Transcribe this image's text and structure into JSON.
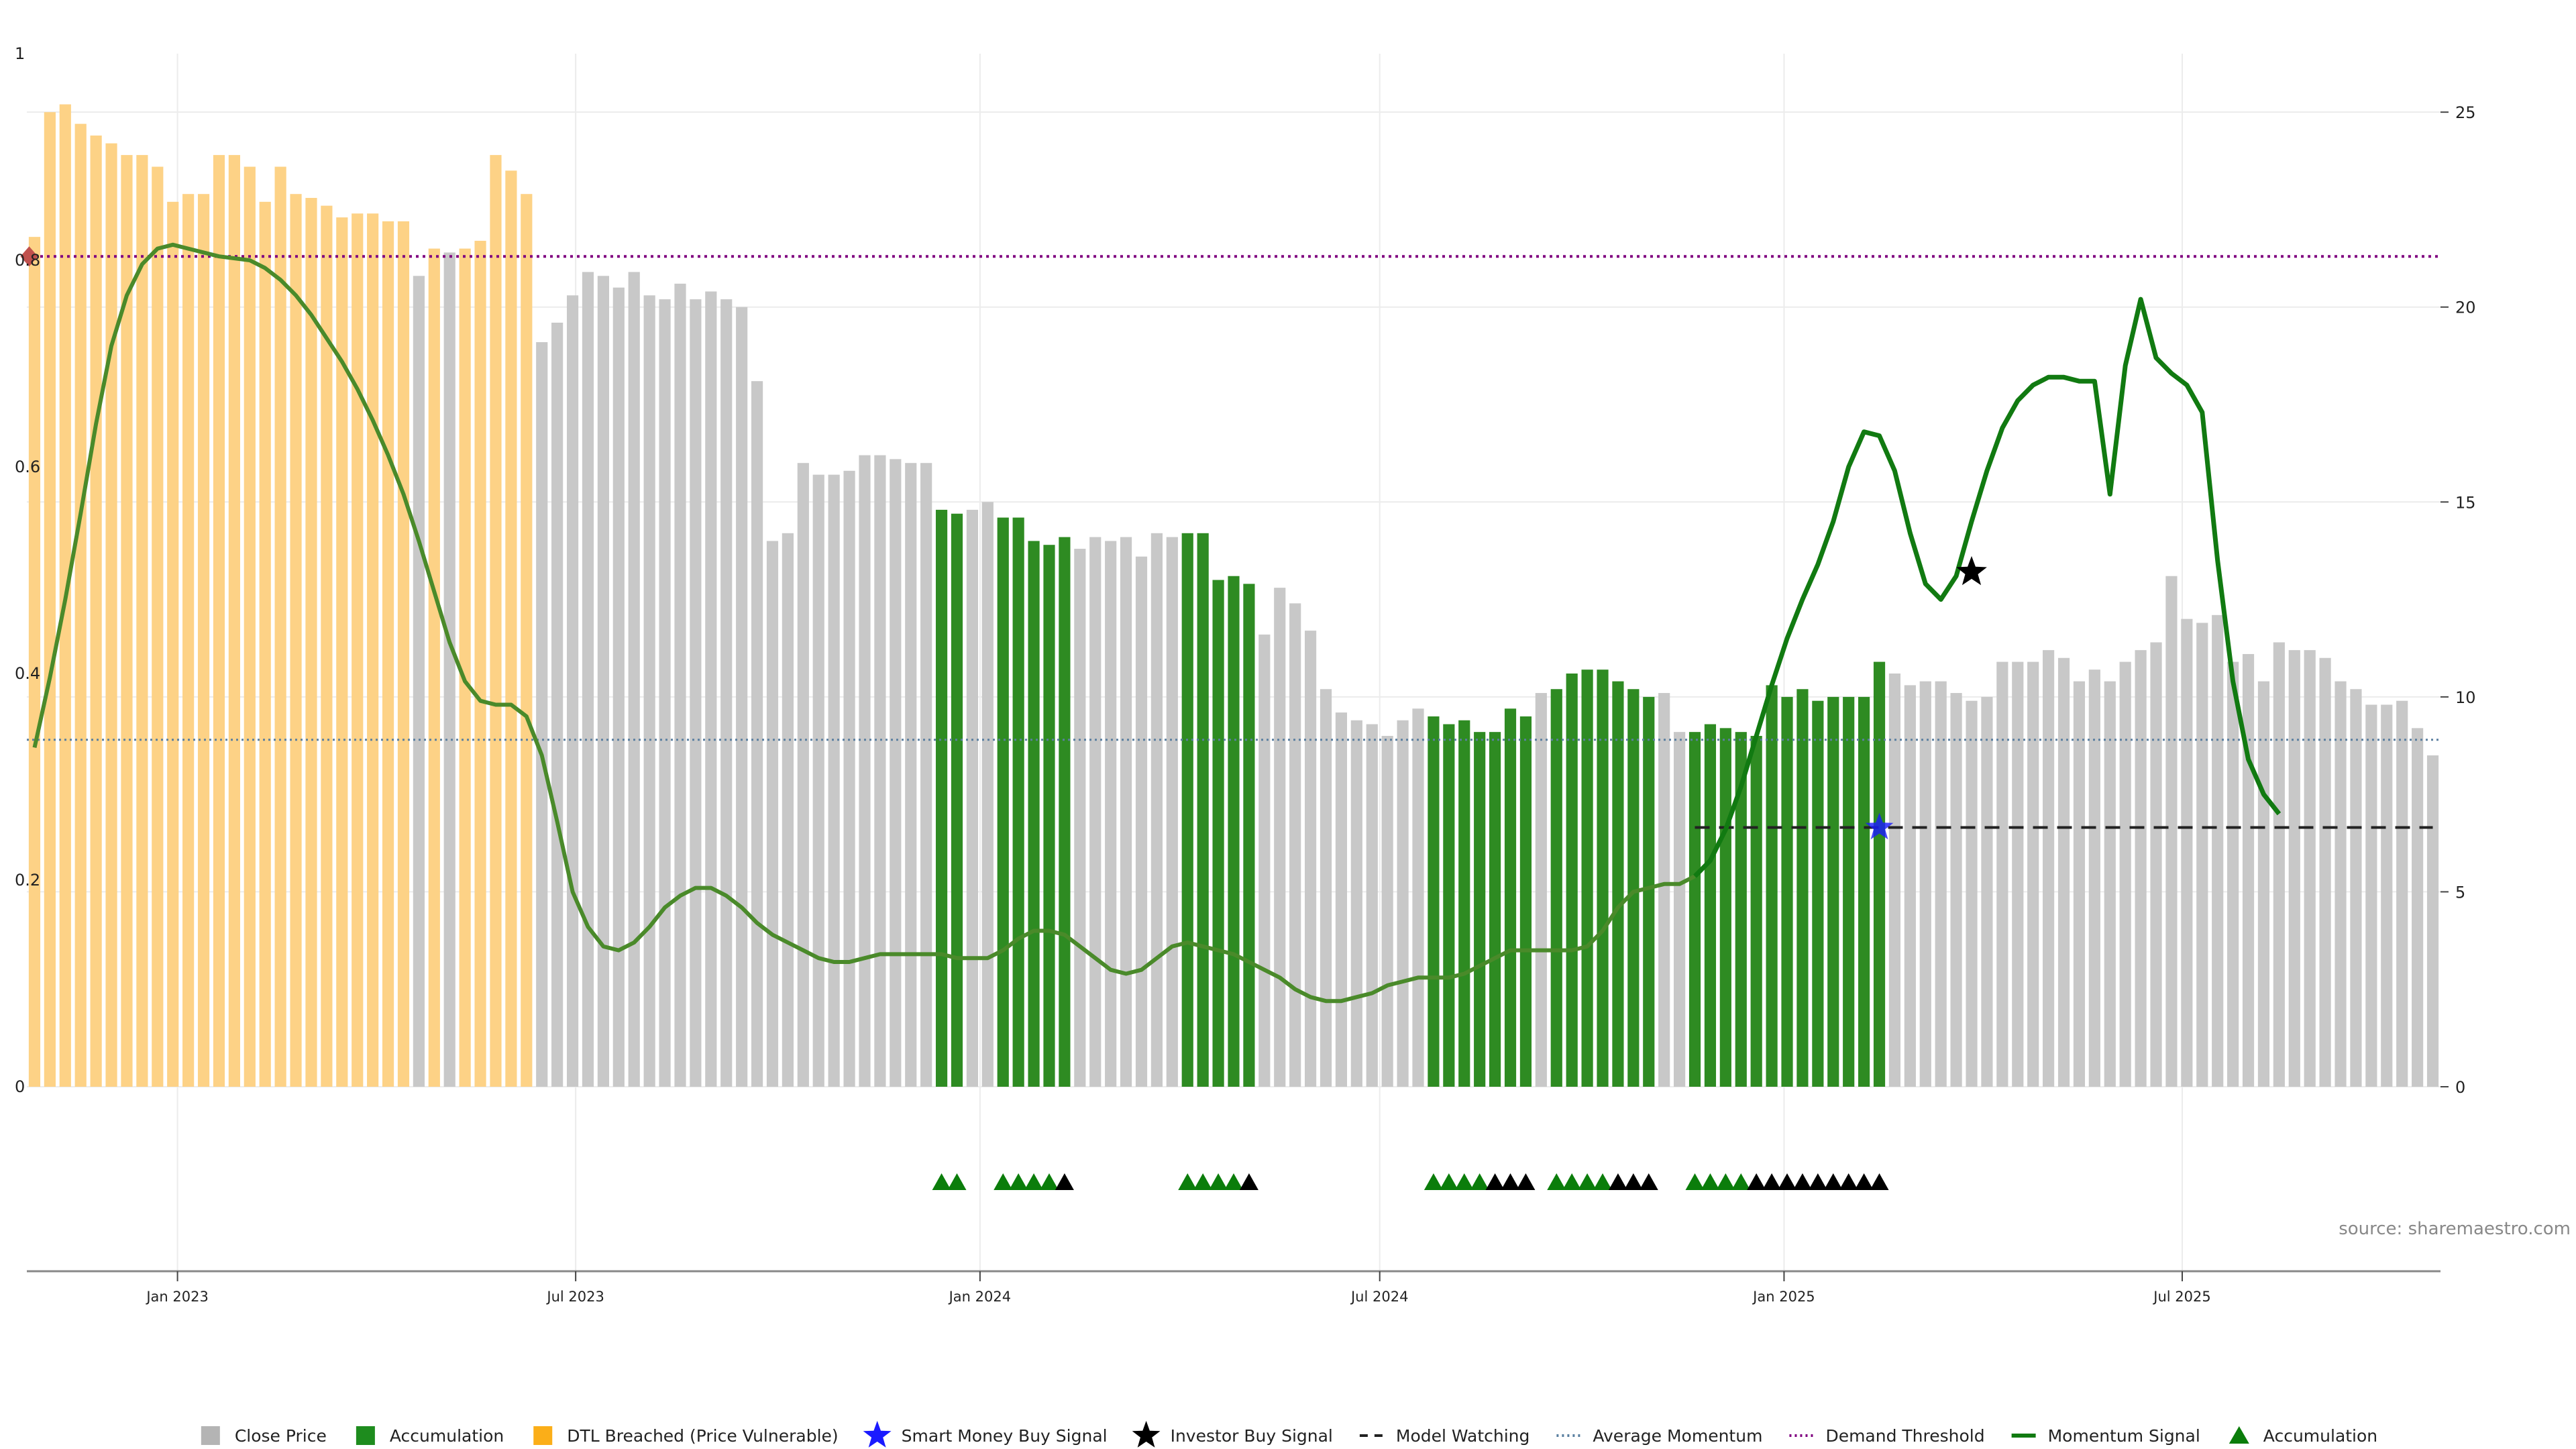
{
  "chart_data": {
    "type": "bar",
    "source_text": "source: sharemaestro.com",
    "y_left": {
      "lim": [
        0,
        1
      ],
      "ticks": [
        "0",
        "0.2",
        "0.4",
        "0.6",
        "0.8",
        "1"
      ]
    },
    "y_right": {
      "lim": [
        0,
        26.5
      ],
      "ticks": [
        "0",
        "5",
        "10",
        "15",
        "20",
        "25"
      ]
    },
    "x_ticks": [
      {
        "label": "Jan 2023",
        "week": 9.3
      },
      {
        "label": "Jul 2023",
        "week": 35.2
      },
      {
        "label": "Jan 2024",
        "week": 61.5
      },
      {
        "label": "Jul 2024",
        "week": 87.5
      },
      {
        "label": "Jan 2025",
        "week": 113.8
      },
      {
        "label": "Jul 2025",
        "week": 139.7
      }
    ],
    "bars": {
      "start_week": 0,
      "values": [
        21.8,
        25,
        25.2,
        24.7,
        24.4,
        24.2,
        23.9,
        23.9,
        23.6,
        22.7,
        22.9,
        22.9,
        23.9,
        23.9,
        23.6,
        22.7,
        23.6,
        22.9,
        22.8,
        22.6,
        22.3,
        22.4,
        22.4,
        22.2,
        22.2,
        20.8,
        21.5,
        21.4,
        21.5,
        21.7,
        23.9,
        23.5,
        22.9,
        19.1,
        19.6,
        20.3,
        20.9,
        20.8,
        20.5,
        20.9,
        20.3,
        20.2,
        20.6,
        20.2,
        20.4,
        20.2,
        20.0,
        18.1,
        14.0,
        14.2,
        16.0,
        15.7,
        15.7,
        15.8,
        16.2,
        16.2,
        16.1,
        16.0,
        16.0,
        14.8,
        14.7,
        14.8,
        15.0,
        14.6,
        14.6,
        14.0,
        13.9,
        14.1,
        13.8,
        14.1,
        14.0,
        14.1,
        13.6,
        14.2,
        14.1,
        14.2,
        14.2,
        13.0,
        13.1,
        12.9,
        11.6,
        12.8,
        12.4,
        11.7,
        10.2,
        9.6,
        9.4,
        9.3,
        9.0,
        9.4,
        9.7,
        9.5,
        9.3,
        9.4,
        9.1,
        9.1,
        9.7,
        9.5,
        10.1,
        10.2,
        10.6,
        10.7,
        10.7,
        10.4,
        10.2,
        10.0,
        10.1,
        9.1,
        9.1,
        9.3,
        9.2,
        9.1,
        9.0,
        10.3,
        10.0,
        10.2,
        9.9,
        10.0,
        10.0,
        10.0,
        10.9,
        10.6,
        10.3,
        10.4,
        10.4,
        10.1,
        9.9,
        10.0,
        10.9,
        10.9,
        10.9,
        11.2,
        11.0,
        10.4,
        10.7,
        10.4,
        10.9,
        11.2,
        11.4,
        13.1,
        12.0,
        11.9,
        12.1,
        10.9,
        11.1,
        10.4,
        11.4,
        11.2,
        11.2,
        11.0,
        10.4,
        10.2,
        9.8,
        9.8,
        9.9,
        9.2,
        8.5
      ],
      "category_runs": [
        {
          "from": 0,
          "to": 24,
          "category": "dtl"
        },
        {
          "from": 25,
          "to": 25,
          "category": "close"
        },
        {
          "from": 26,
          "to": 26,
          "category": "dtl"
        },
        {
          "from": 27,
          "to": 27,
          "category": "close"
        },
        {
          "from": 28,
          "to": 32,
          "category": "dtl"
        },
        {
          "from": 33,
          "to": 58,
          "category": "close"
        },
        {
          "from": 59,
          "to": 60,
          "category": "accumulation"
        },
        {
          "from": 61,
          "to": 62,
          "category": "close"
        },
        {
          "from": 63,
          "to": 67,
          "category": "accumulation"
        },
        {
          "from": 68,
          "to": 74,
          "category": "close"
        },
        {
          "from": 75,
          "to": 79,
          "category": "accumulation"
        },
        {
          "from": 80,
          "to": 90,
          "category": "close"
        },
        {
          "from": 91,
          "to": 97,
          "category": "accumulation"
        },
        {
          "from": 98,
          "to": 98,
          "category": "close"
        },
        {
          "from": 99,
          "to": 105,
          "category": "accumulation"
        },
        {
          "from": 106,
          "to": 107,
          "category": "close"
        },
        {
          "from": 108,
          "to": 120,
          "category": "accumulation"
        },
        {
          "from": 121,
          "to": 156,
          "category": "close"
        }
      ]
    },
    "momentum_signal": {
      "points": [
        [
          0,
          8.7
        ],
        [
          1,
          10.5
        ],
        [
          2,
          12.5
        ],
        [
          3,
          14.7
        ],
        [
          4,
          17
        ],
        [
          5,
          19
        ],
        [
          6,
          20.3
        ],
        [
          7,
          21.1
        ],
        [
          8,
          21.5
        ],
        [
          9,
          21.6
        ],
        [
          10,
          21.5
        ],
        [
          12,
          21.3
        ],
        [
          14,
          21.2
        ],
        [
          15,
          21
        ],
        [
          16,
          20.7
        ],
        [
          17,
          20.3
        ],
        [
          18,
          19.8
        ],
        [
          19,
          19.2
        ],
        [
          20,
          18.6
        ],
        [
          21,
          17.9
        ],
        [
          22,
          17.1
        ],
        [
          23,
          16.2
        ],
        [
          24,
          15.2
        ],
        [
          25,
          14
        ],
        [
          26,
          12.7
        ],
        [
          27,
          11.4
        ],
        [
          28,
          10.4
        ],
        [
          29,
          9.9
        ],
        [
          30,
          9.8
        ],
        [
          31,
          9.8
        ],
        [
          32,
          9.5
        ],
        [
          33,
          8.5
        ],
        [
          34,
          6.8
        ],
        [
          35,
          5
        ],
        [
          36,
          4.1
        ],
        [
          37,
          3.6
        ],
        [
          38,
          3.5
        ],
        [
          39,
          3.7
        ],
        [
          40,
          4.1
        ],
        [
          41,
          4.6
        ],
        [
          42,
          4.9
        ],
        [
          43,
          5.1
        ],
        [
          44,
          5.1
        ],
        [
          45,
          4.9
        ],
        [
          46,
          4.6
        ],
        [
          47,
          4.2
        ],
        [
          48,
          3.9
        ],
        [
          49,
          3.7
        ],
        [
          50,
          3.5
        ],
        [
          51,
          3.3
        ],
        [
          52,
          3.2
        ],
        [
          53,
          3.2
        ],
        [
          54,
          3.3
        ],
        [
          55,
          3.4
        ],
        [
          56,
          3.4
        ],
        [
          57,
          3.4
        ],
        [
          58,
          3.4
        ],
        [
          59,
          3.4
        ],
        [
          60,
          3.3
        ],
        [
          61,
          3.3
        ],
        [
          62,
          3.3
        ],
        [
          63,
          3.5
        ],
        [
          64,
          3.8
        ],
        [
          65,
          4.0
        ],
        [
          66,
          4.0
        ],
        [
          67,
          3.9
        ],
        [
          68,
          3.6
        ],
        [
          69,
          3.3
        ],
        [
          70,
          3.0
        ],
        [
          71,
          2.9
        ],
        [
          72,
          3.0
        ],
        [
          73,
          3.3
        ],
        [
          74,
          3.6
        ],
        [
          75,
          3.7
        ],
        [
          76,
          3.6
        ],
        [
          77,
          3.5
        ],
        [
          78,
          3.4
        ],
        [
          79,
          3.2
        ],
        [
          80,
          3.0
        ],
        [
          81,
          2.8
        ],
        [
          82,
          2.5
        ],
        [
          83,
          2.3
        ],
        [
          84,
          2.2
        ],
        [
          85,
          2.2
        ],
        [
          86,
          2.3
        ],
        [
          87,
          2.4
        ],
        [
          88,
          2.6
        ],
        [
          89,
          2.7
        ],
        [
          90,
          2.8
        ],
        [
          91,
          2.8
        ],
        [
          92,
          2.8
        ],
        [
          93,
          2.9
        ],
        [
          94,
          3.1
        ],
        [
          95,
          3.3
        ],
        [
          96,
          3.5
        ],
        [
          97,
          3.5
        ],
        [
          98,
          3.5
        ],
        [
          99,
          3.5
        ],
        [
          100,
          3.5
        ],
        [
          101,
          3.6
        ],
        [
          102,
          4.0
        ],
        [
          103,
          4.6
        ],
        [
          104,
          5.0
        ],
        [
          105,
          5.1
        ],
        [
          106,
          5.2
        ],
        [
          107,
          5.2
        ],
        [
          108,
          5.4
        ],
        [
          109,
          5.8
        ],
        [
          110,
          6.6
        ],
        [
          111,
          7.7
        ],
        [
          112,
          9.0
        ],
        [
          113,
          10.3
        ],
        [
          114,
          11.5
        ],
        [
          115,
          12.5
        ],
        [
          116,
          13.4
        ],
        [
          117,
          14.5
        ],
        [
          118,
          15.9
        ],
        [
          119,
          16.8
        ],
        [
          120,
          16.7
        ],
        [
          121,
          15.8
        ],
        [
          122,
          14.2
        ],
        [
          123,
          12.9
        ],
        [
          124,
          12.5
        ],
        [
          125,
          13.1
        ],
        [
          126,
          14.5
        ],
        [
          127,
          15.8
        ],
        [
          128,
          16.9
        ],
        [
          129,
          17.6
        ],
        [
          130,
          18.0
        ],
        [
          131,
          18.2
        ],
        [
          132,
          18.2
        ],
        [
          133,
          18.1
        ],
        [
          134,
          18.1
        ],
        [
          135,
          15.2
        ],
        [
          136,
          18.5
        ],
        [
          137,
          20.2
        ],
        [
          138,
          18.7
        ],
        [
          139,
          18.3
        ],
        [
          140,
          18.0
        ],
        [
          141,
          17.3
        ],
        [
          142,
          13.5
        ],
        [
          143,
          10.4
        ],
        [
          144,
          8.4
        ],
        [
          145,
          7.5
        ],
        [
          146,
          7.0
        ]
      ]
    },
    "average_momentum": 8.9,
    "demand_threshold": 21.3,
    "model_watching": {
      "from_week": 108,
      "to_week": 156,
      "value": 6.65
    },
    "smart_money_buy_signal": {
      "week": 120,
      "value": 6.65
    },
    "investor_buy_signal": {
      "week": 126,
      "value": 13.2
    },
    "demand_marker": {
      "week": 0,
      "value": 21.3
    },
    "triangle_rows": [
      {
        "week": 59,
        "color": "green"
      },
      {
        "week": 60,
        "color": "green"
      },
      {
        "week": 63,
        "color": "green"
      },
      {
        "week": 64,
        "color": "green"
      },
      {
        "week": 65,
        "color": "green"
      },
      {
        "week": 66,
        "color": "green"
      },
      {
        "week": 67,
        "color": "black"
      },
      {
        "week": 75,
        "color": "green"
      },
      {
        "week": 76,
        "color": "green"
      },
      {
        "week": 77,
        "color": "green"
      },
      {
        "week": 78,
        "color": "green"
      },
      {
        "week": 79,
        "color": "black"
      },
      {
        "week": 91,
        "color": "green"
      },
      {
        "week": 92,
        "color": "green"
      },
      {
        "week": 93,
        "color": "green"
      },
      {
        "week": 94,
        "color": "green"
      },
      {
        "week": 95,
        "color": "black"
      },
      {
        "week": 96,
        "color": "black"
      },
      {
        "week": 97,
        "color": "black"
      },
      {
        "week": 99,
        "color": "green"
      },
      {
        "week": 100,
        "color": "green"
      },
      {
        "week": 101,
        "color": "green"
      },
      {
        "week": 102,
        "color": "green"
      },
      {
        "week": 103,
        "color": "black"
      },
      {
        "week": 104,
        "color": "black"
      },
      {
        "week": 105,
        "color": "black"
      },
      {
        "week": 108,
        "color": "green"
      },
      {
        "week": 109,
        "color": "green"
      },
      {
        "week": 110,
        "color": "green"
      },
      {
        "week": 111,
        "color": "green"
      },
      {
        "week": 112,
        "color": "black"
      },
      {
        "week": 113,
        "color": "black"
      },
      {
        "week": 114,
        "color": "black"
      },
      {
        "week": 115,
        "color": "black"
      },
      {
        "week": 116,
        "color": "black"
      },
      {
        "week": 117,
        "color": "black"
      },
      {
        "week": 118,
        "color": "black"
      },
      {
        "week": 119,
        "color": "black"
      },
      {
        "week": 120,
        "color": "black"
      }
    ],
    "colors": {
      "close": "#c8c8c8",
      "accumulation": "#2e8b22",
      "dtl": "#fdd286",
      "momentum": "#117a11",
      "momentum_early": "#4a8a2a",
      "average": "#5a7fa0",
      "threshold": "#800080",
      "watching": "#222222",
      "smart_money": "#1a1aff",
      "investor": "#000000",
      "triangle_green": "#0b7d0b",
      "triangle_black": "#000000",
      "grid": "#ececec",
      "demand_marker": "#c0504d"
    },
    "legend": [
      {
        "label": "Close Price",
        "icon": "square",
        "color": "#b4b4b4"
      },
      {
        "label": "Accumulation",
        "icon": "square",
        "color": "#1e8c1e"
      },
      {
        "label": "DTL Breached (Price Vulnerable)",
        "icon": "square",
        "color": "#fbae18"
      },
      {
        "label": "Smart Money Buy Signal",
        "icon": "star",
        "color": "#1a1aff"
      },
      {
        "label": "Investor Buy Signal",
        "icon": "star",
        "color": "#000000"
      },
      {
        "label": "Model Watching",
        "icon": "dash",
        "color": "#222222"
      },
      {
        "label": "Average Momentum",
        "icon": "dot",
        "color": "#5a7fa0"
      },
      {
        "label": "Demand Threshold",
        "icon": "dot",
        "color": "#800080"
      },
      {
        "label": "Momentum Signal",
        "icon": "line",
        "color": "#117a11"
      },
      {
        "label": "Accumulation",
        "icon": "triangle",
        "color": "#0b7d0b"
      }
    ]
  }
}
